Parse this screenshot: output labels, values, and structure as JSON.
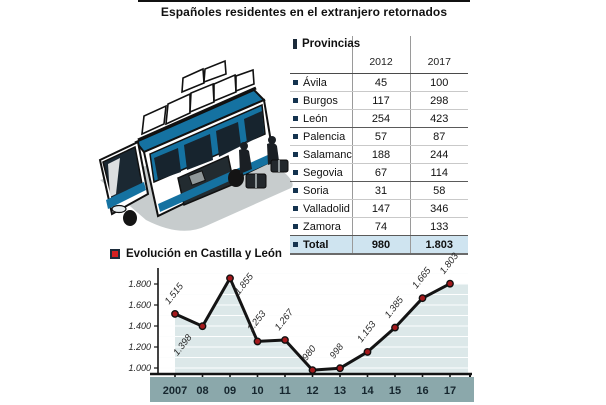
{
  "page": {
    "title": "Españoles residentes en el extranjero retornados"
  },
  "table": {
    "legend_label": "Provincias",
    "columns": [
      "2012",
      "2017"
    ],
    "rows": [
      {
        "name": "Ávila",
        "v2012": "45",
        "v2017": "100"
      },
      {
        "name": "Burgos",
        "v2012": "117",
        "v2017": "298"
      },
      {
        "name": "León",
        "v2012": "254",
        "v2017": "423"
      },
      {
        "name": "Palencia",
        "v2012": "57",
        "v2017": "87"
      },
      {
        "name": "Salamanca",
        "v2012": "188",
        "v2017": "244"
      },
      {
        "name": "Segovia",
        "v2012": "67",
        "v2017": "114"
      },
      {
        "name": "Soria",
        "v2012": "31",
        "v2017": "58"
      },
      {
        "name": "Valladolid",
        "v2012": "147",
        "v2017": "346"
      },
      {
        "name": "Zamora",
        "v2012": "74",
        "v2017": "133"
      }
    ],
    "total": {
      "name": "Total",
      "v2012": "980",
      "v2017": "1.803"
    }
  },
  "chart_data": {
    "type": "line",
    "title": "Evolución en Castilla y León",
    "x": [
      "2007",
      "08",
      "09",
      "10",
      "11",
      "12",
      "13",
      "14",
      "15",
      "16",
      "17"
    ],
    "values": [
      1515,
      1398,
      1855,
      1253,
      1267,
      980,
      998,
      1153,
      1385,
      1665,
      1803
    ],
    "point_labels": [
      "1.515",
      "1.398",
      "1.855",
      "1.253",
      "1.267",
      "980",
      "998",
      "1.153",
      "1.385",
      "1.665",
      "1.803"
    ],
    "ytick_values": [
      1800,
      1600,
      1400,
      1200,
      1000
    ],
    "ytick_labels": [
      "1.800",
      "1.600",
      "1.400",
      "1.200",
      "1.000"
    ],
    "ylim": [
      1000,
      1900
    ],
    "grid": true,
    "area_fill": true,
    "legend_position": "top-left"
  },
  "colors": {
    "accent_red": "#d31f21",
    "bullet_navy": "#14334f",
    "line_black": "#141414",
    "marker_red": "#a3191c",
    "area_fill": "#dce8e9",
    "band_teal": "#8ba8ab",
    "total_row_bg": "#cfe4f0",
    "bus_blue": "#1572a1"
  }
}
